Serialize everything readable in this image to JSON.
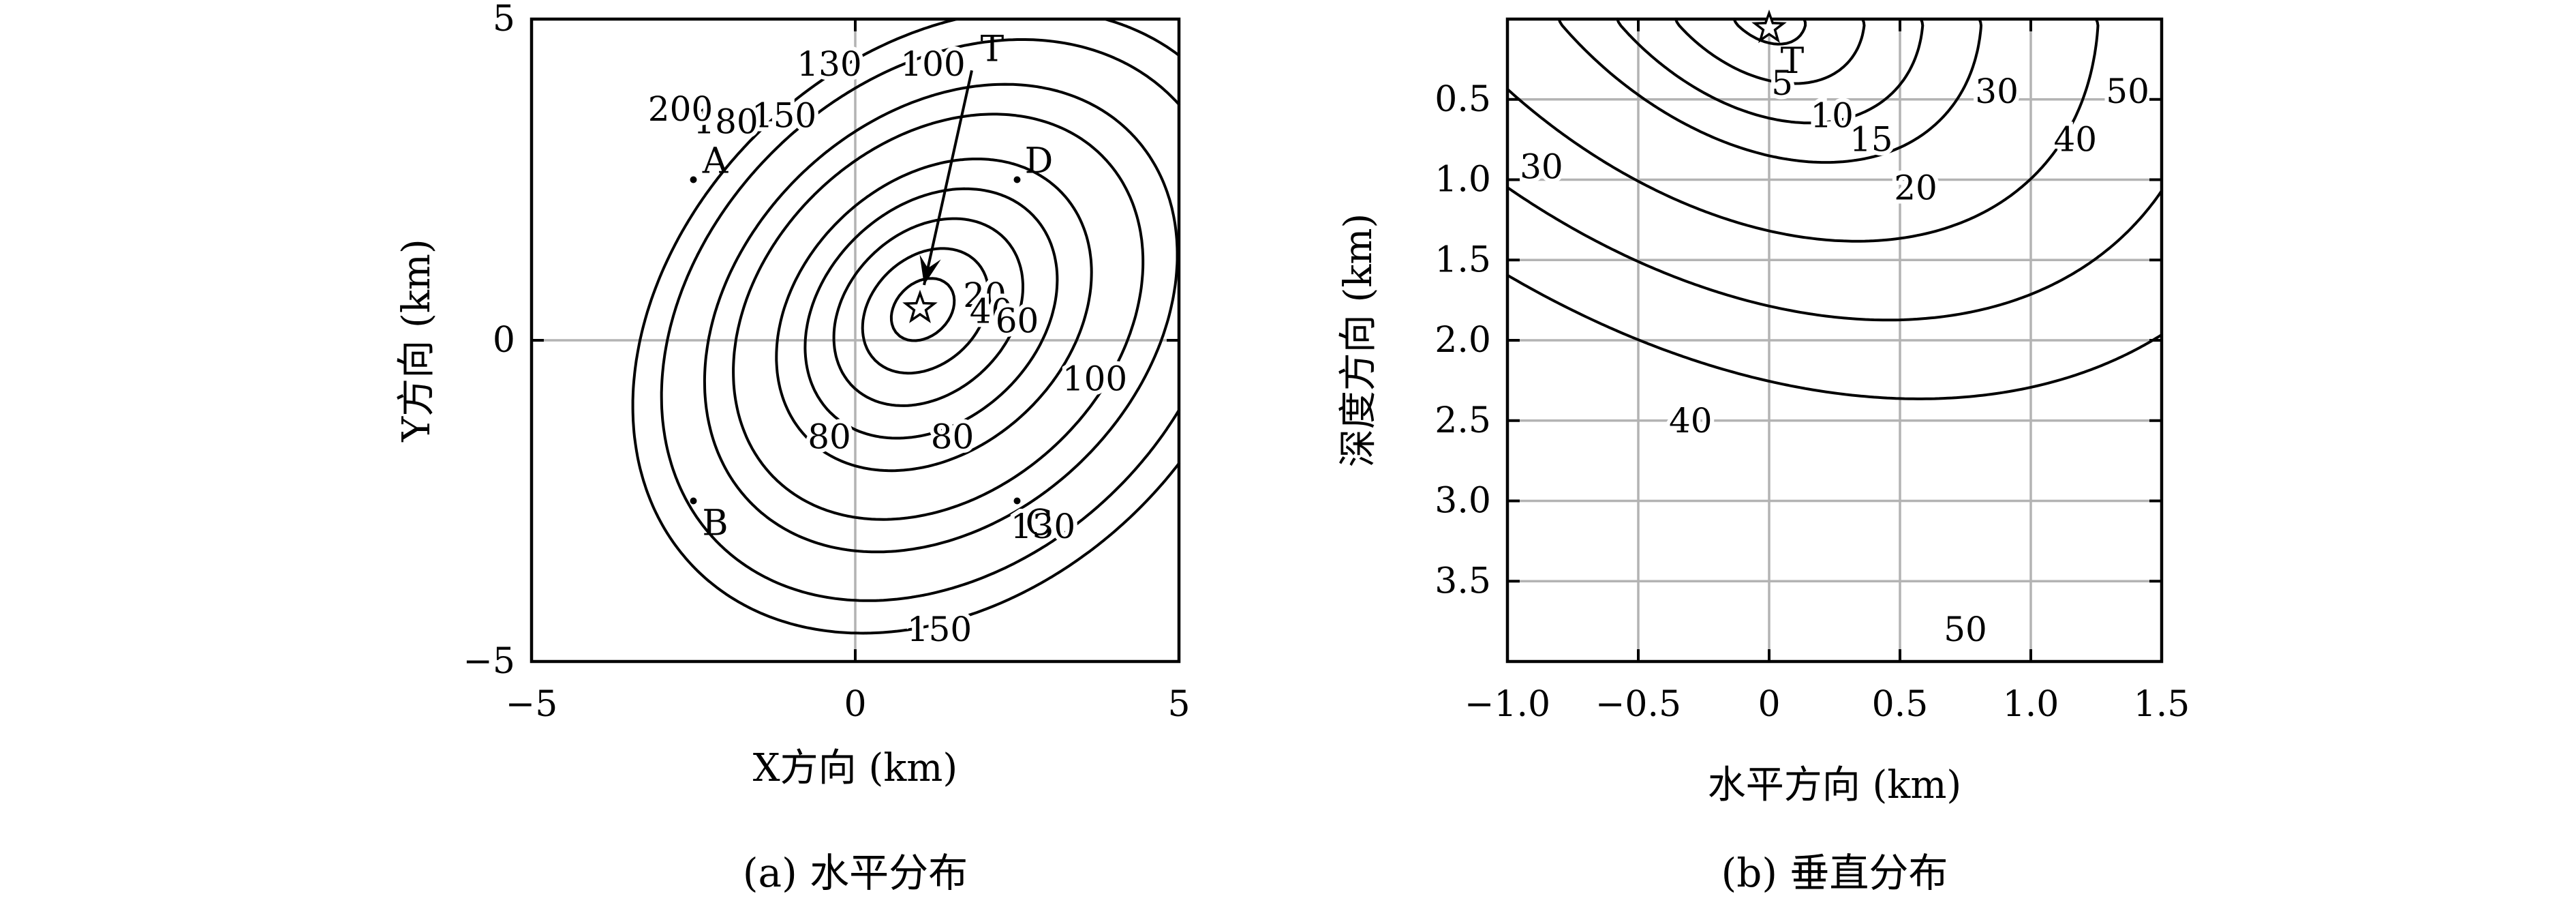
{
  "chart_data": [
    {
      "type": "contour",
      "caption": "(a) 水平分布",
      "xlabel": "X方向 (km)",
      "ylabel": "Y方向 (km)",
      "xlim": [
        -5,
        5
      ],
      "ylim": [
        -5,
        5
      ],
      "xticks": [
        -5,
        0,
        5
      ],
      "yticks": [
        -5,
        0,
        5
      ],
      "xtick_labels": [
        "−5",
        "0",
        "5"
      ],
      "ytick_labels": [
        "−5",
        "0",
        "5"
      ],
      "grid": true,
      "target": {
        "label": "T",
        "x": 1.0,
        "y": 0.5,
        "marker": "star"
      },
      "stations": [
        {
          "label": "A",
          "x": -2.5,
          "y": 2.5
        },
        {
          "label": "B",
          "x": -2.5,
          "y": -2.5
        },
        {
          "label": "C",
          "x": 2.5,
          "y": -2.5
        },
        {
          "label": "D",
          "x": 2.5,
          "y": 2.5
        }
      ],
      "contour_levels": [
        20,
        40,
        60,
        80,
        100,
        130,
        150,
        180,
        200
      ],
      "contour_labels": [
        {
          "text": "20",
          "x": 2.0,
          "y": 0.7
        },
        {
          "text": "40",
          "x": 2.1,
          "y": 0.45
        },
        {
          "text": "60",
          "x": 2.5,
          "y": 0.3
        },
        {
          "text": "80",
          "x": -0.4,
          "y": -1.5
        },
        {
          "text": "80",
          "x": 1.5,
          "y": -1.5
        },
        {
          "text": "100",
          "x": 1.2,
          "y": 4.3
        },
        {
          "text": "100",
          "x": 3.7,
          "y": -0.6
        },
        {
          "text": "130",
          "x": -0.4,
          "y": 4.3
        },
        {
          "text": "130",
          "x": 2.9,
          "y": -2.9
        },
        {
          "text": "150",
          "x": -1.1,
          "y": 3.5
        },
        {
          "text": "150",
          "x": 1.3,
          "y": -4.5
        },
        {
          "text": "180",
          "x": -2.0,
          "y": 3.4
        },
        {
          "text": "200",
          "x": -2.7,
          "y": 3.6
        }
      ]
    },
    {
      "type": "contour",
      "caption": "(b) 垂直分布",
      "xlabel": "水平方向 (km)",
      "ylabel": "深度方向 (km)",
      "xlim": [
        -1.0,
        1.5
      ],
      "ylim": [
        0.0,
        4.0
      ],
      "y_inverted": true,
      "xticks": [
        -1.0,
        -0.5,
        0,
        0.5,
        1.0,
        1.5
      ],
      "yticks": [
        0.5,
        1.0,
        1.5,
        2.0,
        2.5,
        3.0,
        3.5
      ],
      "xtick_labels": [
        "−1.0",
        "−0.5",
        "0",
        "0.5",
        "1.0",
        "1.5"
      ],
      "ytick_labels": [
        "0.5",
        "1.0",
        "1.5",
        "2.0",
        "2.5",
        "3.0",
        "3.5"
      ],
      "grid": true,
      "target": {
        "label": "T",
        "x": 0.0,
        "y": 0.03,
        "marker": "star"
      },
      "contour_levels": [
        5,
        10,
        15,
        20,
        30,
        40,
        50
      ],
      "contour_labels": [
        {
          "text": "5",
          "x": 0.05,
          "y": 0.4
        },
        {
          "text": "10",
          "x": 0.24,
          "y": 0.6
        },
        {
          "text": "15",
          "x": 0.39,
          "y": 0.75
        },
        {
          "text": "20",
          "x": 0.56,
          "y": 1.05
        },
        {
          "text": "30",
          "x": -0.87,
          "y": 0.92
        },
        {
          "text": "30",
          "x": 0.87,
          "y": 0.45
        },
        {
          "text": "40",
          "x": 1.17,
          "y": 0.75
        },
        {
          "text": "40",
          "x": -0.3,
          "y": 2.5
        },
        {
          "text": "50",
          "x": 1.37,
          "y": 0.45
        },
        {
          "text": "50",
          "x": 0.75,
          "y": 3.8
        }
      ]
    }
  ]
}
